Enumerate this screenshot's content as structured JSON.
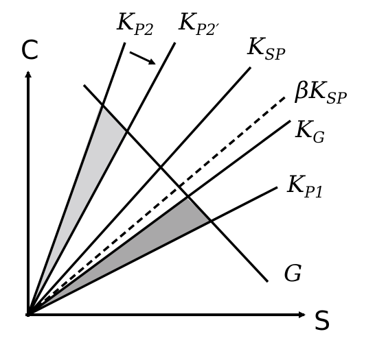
{
  "axes": {
    "x_label": "S",
    "y_label": "C"
  },
  "labels": {
    "kp2": {
      "main": "K",
      "sub": "P2"
    },
    "kp2_prime": {
      "main": "K",
      "sub": "P2′"
    },
    "ksp": {
      "main": "K",
      "sub": "SP"
    },
    "beta_ksp": {
      "main": "βK",
      "sub": "SP"
    },
    "kg": {
      "main": "K",
      "sub": "G"
    },
    "kp1": {
      "main": "K",
      "sub": "P1"
    },
    "g": {
      "main": "G"
    }
  },
  "colors": {
    "line": "#000000",
    "upper_region_fill": "#d4d4d6",
    "lower_region_fill": "#a9a8a9"
  }
}
